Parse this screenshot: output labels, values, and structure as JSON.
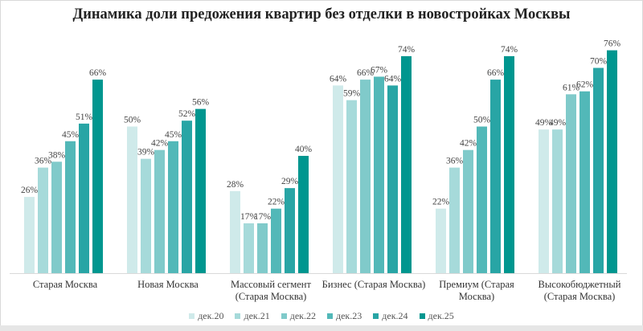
{
  "chart_data": {
    "type": "bar",
    "title": "Динамика доли предожения квартир без отделки в новостройках Москвы",
    "categories": [
      "Старая Москва",
      "Новая Москва",
      "Массовый сегмент\n(Старая Москва)",
      "Бизнес (Старая Москва)",
      "Премиум (Старая\nМосква)",
      "Высокобюджетный\n(Старая Москва)"
    ],
    "series": [
      {
        "name": "дек.20",
        "color": "#cfeaea",
        "values": [
          26,
          50,
          28,
          64,
          22,
          49
        ]
      },
      {
        "name": "дек.21",
        "color": "#a6dada",
        "values": [
          36,
          39,
          17,
          59,
          36,
          49
        ]
      },
      {
        "name": "дек.22",
        "color": "#80caca",
        "values": [
          38,
          42,
          17,
          66,
          42,
          61
        ]
      },
      {
        "name": "дек.23",
        "color": "#52b8b8",
        "values": [
          45,
          45,
          22,
          67,
          50,
          62
        ]
      },
      {
        "name": "дек.24",
        "color": "#28a5a5",
        "values": [
          51,
          52,
          29,
          64,
          66,
          70
        ]
      },
      {
        "name": "дек.25",
        "color": "#00968f",
        "values": [
          66,
          56,
          40,
          74,
          74,
          76
        ]
      }
    ],
    "value_format": "{v}%",
    "ylim": [
      0,
      80
    ],
    "grid": false,
    "legend": "bottom"
  }
}
